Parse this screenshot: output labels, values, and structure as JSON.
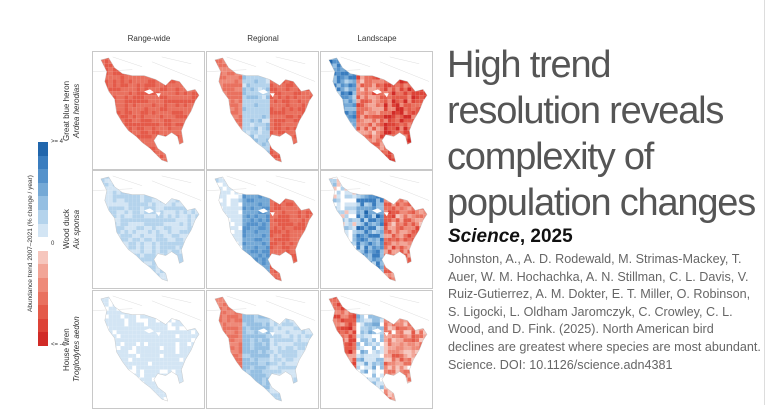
{
  "figure": {
    "columns": [
      "Range-wide",
      "Regional",
      "Landscape"
    ],
    "rows": [
      {
        "common": "Great blue heron",
        "scientific": "Ardea herodias"
      },
      {
        "common": "Wood duck",
        "scientific": "Aix sponsa"
      },
      {
        "common": "House wren",
        "scientific": "Troglodytes aedon"
      }
    ],
    "legend": {
      "title": "Abundance trend 2007–2021 (% change / year)",
      "max_label": ">= 4",
      "mid_label": "0",
      "min_label": "<= -4",
      "colors": [
        "#2166ac",
        "#3a7dbf",
        "#5592cb",
        "#75a9d6",
        "#95bfe2",
        "#b4d3ec",
        "#d3e5f4",
        "#ffffff",
        "#f6c6bd",
        "#f2a597",
        "#ee8a79",
        "#e9715f",
        "#e45a49",
        "#dd4337",
        "#d12b27"
      ]
    },
    "panel_trends": [
      [
        -2.5,
        {
          "west": -2,
          "interior": 1.2,
          "east": -2.5
        },
        {
          "west": 2.5,
          "interior": -2,
          "east": -3
        }
      ],
      [
        0.9,
        {
          "west": 0.5,
          "interior": 2.5,
          "east": -2.5
        },
        {
          "west": 0.5,
          "interior": 2.5,
          "east": -2
        }
      ],
      [
        0.5,
        {
          "west": -2,
          "interior": 1.5,
          "east": 0.8
        },
        {
          "west": -2.5,
          "interior": 1,
          "east": -1.5
        }
      ]
    ]
  },
  "slide": {
    "title_lines": [
      "High trend",
      "resolution reveals",
      "complexity of",
      "population changes"
    ],
    "journal": "Science",
    "year": ", 2025",
    "citation": "Johnston, A., A. D. Rodewald, M. Strimas-Mackey, T. Auer, W. M. Hochachka, A. N. Stillman, C. L. Davis, V. Ruiz-Gutierrez, A. M. Dokter, E. T. Miller, O. Robinson, S. Ligocki, L. Oldham Jaromczyk, C. Crowley, C. L. Wood, and D. Fink. (2025). North American bird declines are greatest where species are most abundant. Science. DOI: 10.1126/science.adn4381"
  }
}
